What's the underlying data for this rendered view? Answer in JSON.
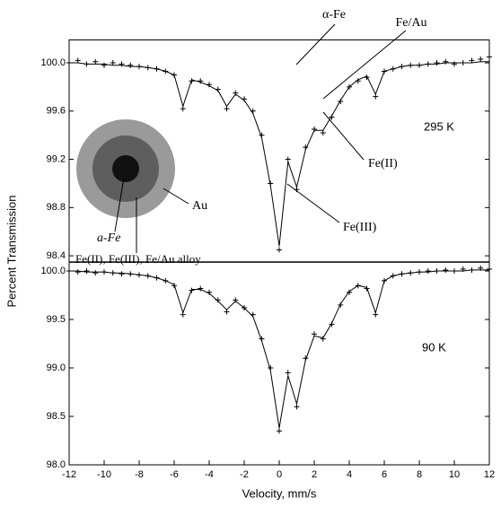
{
  "chart_data": [
    {
      "type": "line",
      "x": [
        -12,
        -11.5,
        -11,
        -10.5,
        -10,
        -9.5,
        -9,
        -8.5,
        -8,
        -7.5,
        -7,
        -6.5,
        -6,
        -5.5,
        -5,
        -4.5,
        -4,
        -3.5,
        -3,
        -2.5,
        -2,
        -1.5,
        -1,
        -0.5,
        0,
        0.5,
        1,
        1.5,
        2,
        2.5,
        3,
        3.5,
        4,
        4.5,
        5,
        5.5,
        6,
        6.5,
        7,
        7.5,
        8,
        8.5,
        9,
        9.5,
        10,
        10.5,
        11,
        11.5,
        12
      ],
      "series": [
        {
          "style": "plus",
          "color": "#000000",
          "values": [
            100.0,
            100.02,
            99.99,
            100.01,
            99.98,
            100.0,
            99.99,
            99.98,
            99.97,
            99.96,
            99.95,
            99.93,
            99.9,
            99.62,
            99.85,
            99.85,
            99.82,
            99.78,
            99.62,
            99.75,
            99.7,
            99.6,
            99.4,
            99.0,
            98.45,
            99.2,
            98.95,
            99.3,
            99.45,
            99.42,
            99.55,
            99.68,
            99.8,
            99.85,
            99.88,
            99.72,
            99.93,
            99.95,
            99.97,
            99.98,
            99.98,
            99.99,
            100.0,
            100.01,
            99.99,
            100.0,
            100.02,
            100.03,
            100.05
          ]
        },
        {
          "style": "line",
          "color": "#000000",
          "values": [
            100.0,
            100.0,
            99.99,
            99.99,
            99.99,
            99.98,
            99.98,
            99.97,
            99.97,
            99.96,
            99.95,
            99.93,
            99.9,
            99.64,
            99.86,
            99.84,
            99.81,
            99.77,
            99.64,
            99.74,
            99.69,
            99.58,
            99.38,
            98.98,
            98.48,
            99.18,
            98.97,
            99.28,
            99.44,
            99.44,
            99.56,
            99.69,
            99.8,
            99.86,
            99.89,
            99.74,
            99.93,
            99.95,
            99.97,
            99.98,
            99.98,
            99.99,
            99.99,
            100.0,
            100.0,
            100.0,
            100.0,
            100.01,
            100.01
          ]
        }
      ],
      "xlim": [
        -12,
        12
      ],
      "ylim": [
        98.35,
        100.19
      ],
      "yticks": [
        {
          "value": 100,
          "label": "100.0"
        },
        99.6,
        99.2,
        98.8,
        98.4
      ],
      "annotations": [
        "α-Fe",
        "Fe/Au",
        "295 K",
        "Fe(II)",
        "Fe(III)",
        "Au",
        "a-Fe",
        "Fe(II), Fe(III), Fe/Au alloy"
      ]
    },
    {
      "type": "line",
      "x": [
        -12,
        -11.5,
        -11,
        -10.5,
        -10,
        -9.5,
        -9,
        -8.5,
        -8,
        -7.5,
        -7,
        -6.5,
        -6,
        -5.5,
        -5,
        -4.5,
        -4,
        -3.5,
        -3,
        -2.5,
        -2,
        -1.5,
        -1,
        -0.5,
        0,
        0.5,
        1,
        1.5,
        2,
        2.5,
        3,
        3.5,
        4,
        4.5,
        5,
        5.5,
        6,
        6.5,
        7,
        7.5,
        8,
        8.5,
        9,
        9.5,
        10,
        10.5,
        11,
        11.5,
        12
      ],
      "series": [
        {
          "style": "plus",
          "color": "#000000",
          "values": [
            100.0,
            99.99,
            100.0,
            99.98,
            99.99,
            99.98,
            99.97,
            99.97,
            99.96,
            99.95,
            99.93,
            99.9,
            99.85,
            99.55,
            99.8,
            99.82,
            99.78,
            99.7,
            99.58,
            99.7,
            99.62,
            99.55,
            99.3,
            99.0,
            98.35,
            98.95,
            98.6,
            99.1,
            99.35,
            99.3,
            99.45,
            99.65,
            99.78,
            99.85,
            99.82,
            99.55,
            99.9,
            99.95,
            99.97,
            99.98,
            99.99,
            100.0,
            100.0,
            100.01,
            100.0,
            100.02,
            100.01,
            100.03,
            100.02
          ]
        },
        {
          "style": "line",
          "color": "#000000",
          "values": [
            100.0,
            100.0,
            99.99,
            99.99,
            99.99,
            99.98,
            99.98,
            99.97,
            99.96,
            99.95,
            99.93,
            99.9,
            99.86,
            99.57,
            99.81,
            99.81,
            99.77,
            99.69,
            99.6,
            99.69,
            99.62,
            99.53,
            99.28,
            98.97,
            98.38,
            98.92,
            98.63,
            99.08,
            99.33,
            99.31,
            99.46,
            99.66,
            99.79,
            99.85,
            99.83,
            99.57,
            99.9,
            99.95,
            99.97,
            99.98,
            99.99,
            99.99,
            100.0,
            100.0,
            100.0,
            100.0,
            100.01,
            100.01,
            100.01
          ]
        }
      ],
      "xlim": [
        -12,
        12
      ],
      "ylim": [
        98.0,
        100.09
      ],
      "xticks": [
        -12,
        -10,
        -8,
        -6,
        -4,
        -2,
        0,
        2,
        4,
        6,
        8,
        10,
        12
      ],
      "yticks": [
        {
          "value": 100,
          "label": "100.0"
        },
        99.5,
        {
          "value": 99,
          "label": "99.0"
        },
        98.5,
        {
          "value": 98,
          "label": "98.0"
        }
      ],
      "xlabel": "Velocity, mm/s",
      "ylabel": "Percent Transmission",
      "annotations": [
        "90 K"
      ]
    }
  ]
}
